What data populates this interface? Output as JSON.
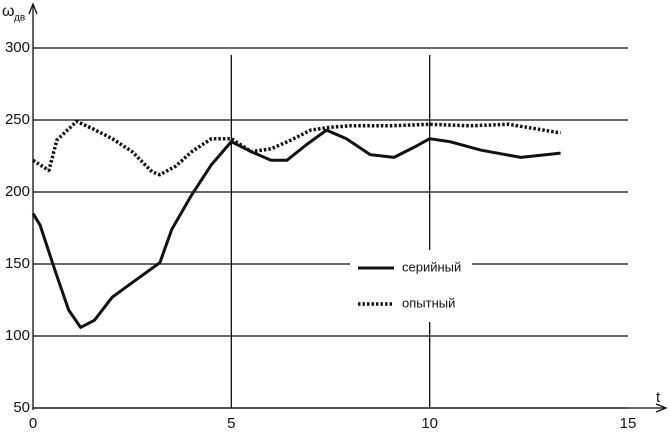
{
  "chart_data": {
    "type": "line",
    "ylabel": "ω",
    "ylabel_subscript": "дв",
    "xlabel": "t",
    "xlim": [
      0,
      15
    ],
    "xticks": [
      0,
      5,
      10,
      15
    ],
    "ylim": [
      50,
      300
    ],
    "yticks": [
      50,
      100,
      150,
      200,
      250,
      300
    ],
    "grid": true,
    "legend": "center-right",
    "series": [
      {
        "name": "серийный",
        "color": "#111111",
        "style": "solid",
        "x": [
          0,
          0.18,
          0.55,
          0.9,
          1.2,
          1.55,
          2,
          2.6,
          3.2,
          3.5,
          4,
          4.5,
          5,
          5.5,
          6,
          6.4,
          6.9,
          7.4,
          7.9,
          8.5,
          9.1,
          9.6,
          10,
          10.5,
          11.3,
          12.3,
          13.3
        ],
        "values": [
          185,
          177,
          146,
          118,
          106,
          111,
          127,
          139,
          151,
          174,
          198,
          219,
          235,
          228,
          222,
          222,
          233,
          243,
          237,
          226,
          224,
          231,
          237,
          235,
          229,
          224,
          227
        ]
      },
      {
        "name": "опытный",
        "color": "#111111",
        "style": "dotted",
        "x": [
          0,
          0.4,
          0.6,
          1.1,
          1.5,
          2,
          2.5,
          3,
          3.2,
          3.6,
          4,
          4.5,
          5,
          5.5,
          6,
          6.5,
          7,
          7.5,
          8,
          9,
          10,
          11,
          12,
          13.3
        ],
        "values": [
          222,
          215,
          236,
          249,
          244,
          237,
          228,
          214,
          212,
          218,
          228,
          237,
          237,
          228,
          230,
          236,
          243,
          245,
          246,
          246,
          247,
          246,
          247,
          241
        ]
      }
    ]
  }
}
